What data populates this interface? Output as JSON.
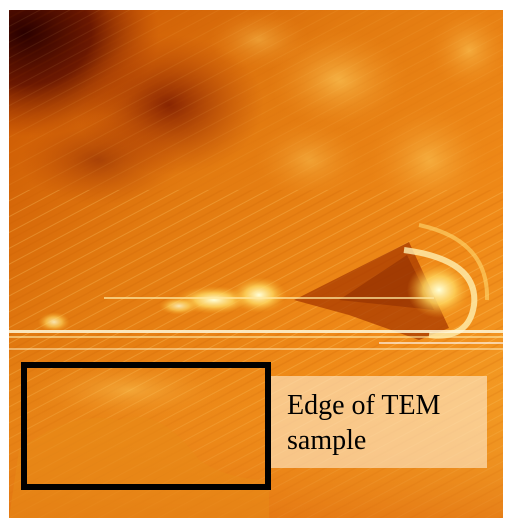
{
  "image": {
    "description_colormap": [
      "#3a0000",
      "#8a1a00",
      "#d85a00",
      "#f39a1c",
      "#ffe07a",
      "#ffffe0"
    ]
  },
  "annotation": {
    "label": "Edge of TEM\nsample",
    "box_color": "#000000",
    "label_background": "#ffecd0"
  }
}
